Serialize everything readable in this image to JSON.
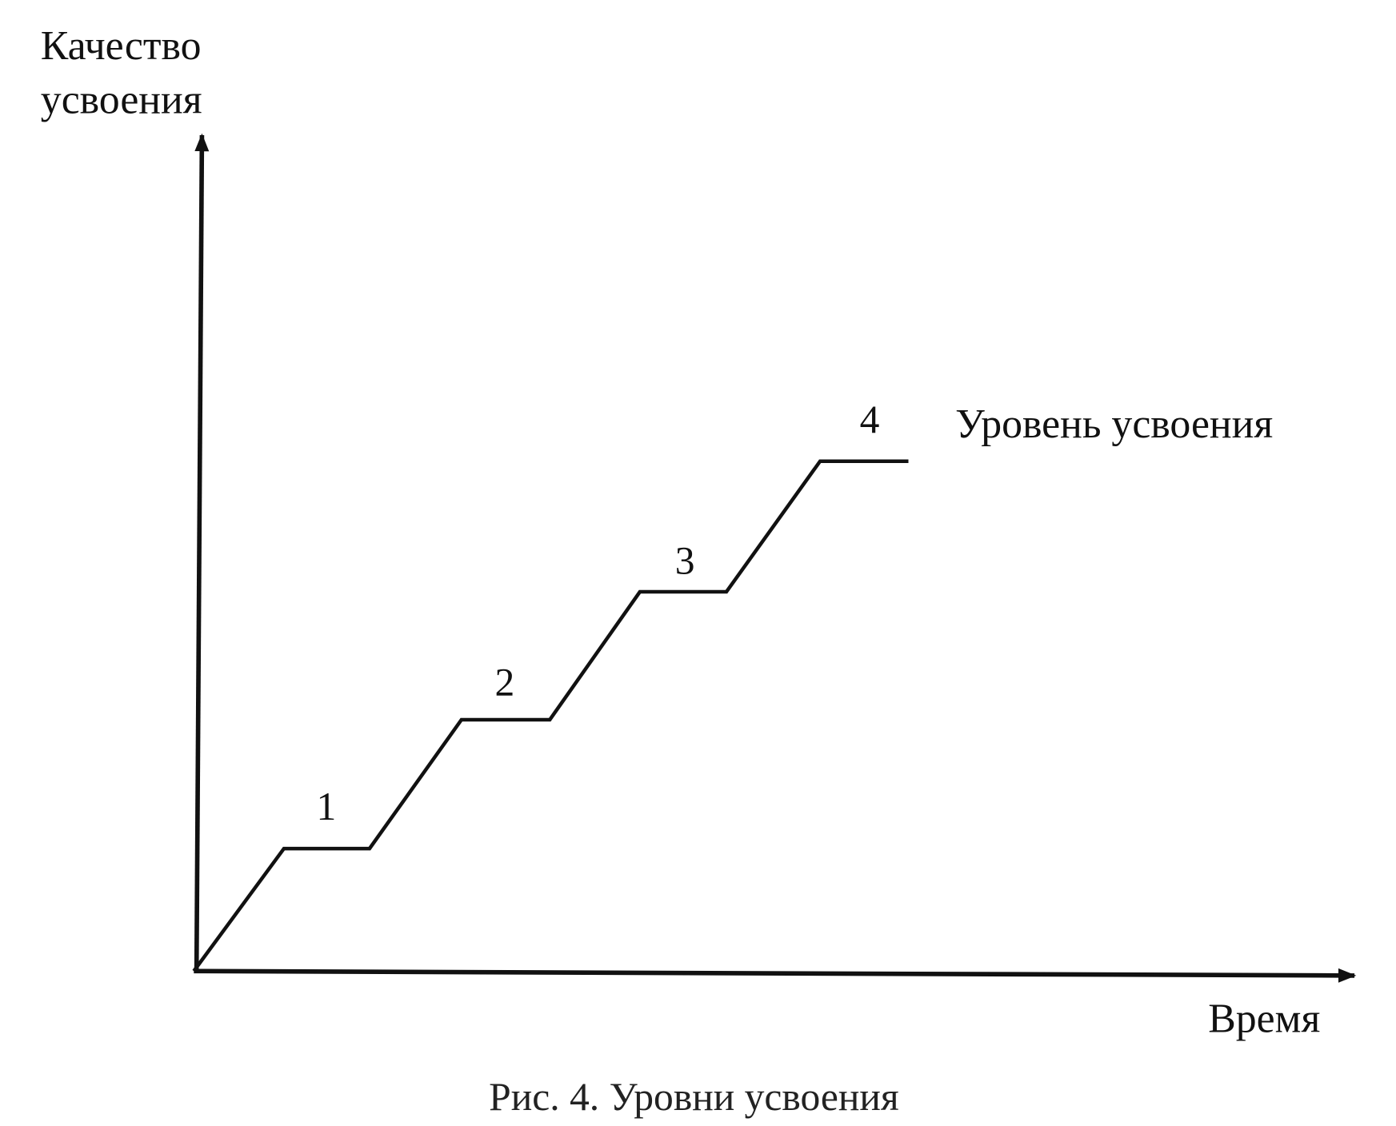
{
  "axes": {
    "y_label_lines": [
      "Качество",
      "усвоения"
    ],
    "x_label": "Время"
  },
  "curve_label": "Уровень усвоения",
  "levels": [
    "1",
    "2",
    "3",
    "4"
  ],
  "caption": "Рис. 4. Уровни усвоения"
}
